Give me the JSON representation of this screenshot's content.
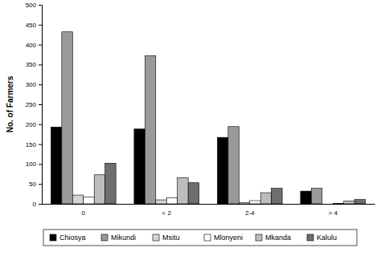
{
  "chart_data": {
    "type": "bar",
    "y_label": "No. of Farmers",
    "categories": [
      "0",
      "< 2",
      "2-4",
      "> 4"
    ],
    "series": [
      {
        "name": "Chiosya",
        "color": "#000000",
        "values": [
          193,
          188,
          167,
          32
        ]
      },
      {
        "name": "Mikundi",
        "color": "#9a9a9a",
        "values": [
          432,
          372,
          194,
          39
        ]
      },
      {
        "name": "Msitu",
        "color": "#d4d4d4",
        "values": [
          22,
          10,
          3,
          0
        ]
      },
      {
        "name": "Mlonyeni",
        "color": "#ffffff",
        "values": [
          17,
          15,
          8,
          1
        ]
      },
      {
        "name": "Mkanda",
        "color": "#bdbdbd",
        "values": [
          73,
          66,
          28,
          7
        ]
      },
      {
        "name": "Kalulu",
        "color": "#6e6e6e",
        "values": [
          102,
          53,
          39,
          11
        ]
      }
    ],
    "ylim": [
      0,
      500
    ],
    "yticks": [
      0,
      50,
      100,
      150,
      200,
      250,
      300,
      350,
      400,
      450,
      500
    ],
    "grid": false,
    "legend": "bottom"
  }
}
